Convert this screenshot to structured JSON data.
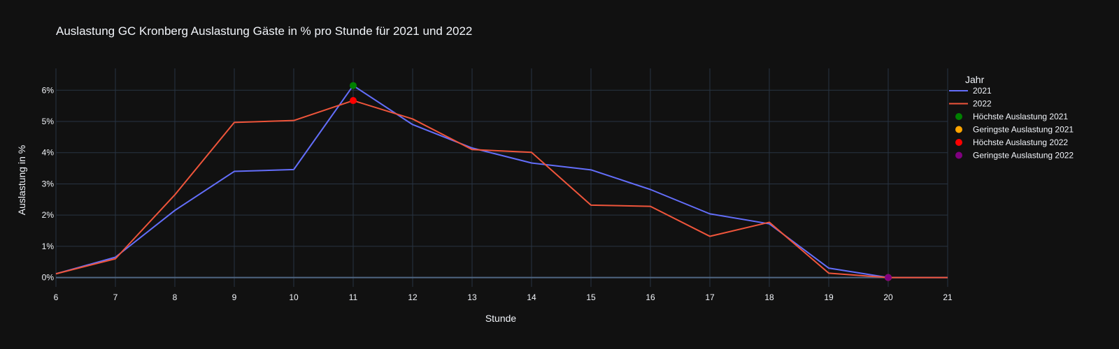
{
  "chart_data": {
    "type": "line",
    "title": "Auslastung GC Kronberg Auslastung Gäste in % pro Stunde für 2021 und 2022",
    "xlabel": "Stunde",
    "ylabel": "Auslastung in %",
    "xlim": [
      6,
      21
    ],
    "ylim": [
      -0.3,
      6.7
    ],
    "xticks": [
      6,
      7,
      8,
      9,
      10,
      11,
      12,
      13,
      14,
      15,
      16,
      17,
      18,
      19,
      20,
      21
    ],
    "yticks": [
      0,
      1,
      2,
      3,
      4,
      5,
      6
    ],
    "ytick_suffix": "%",
    "grid": true,
    "legend_title": "Jahr",
    "legend_position": "right",
    "series": [
      {
        "name": "2021",
        "color": "#636efa",
        "x": [
          6,
          7,
          8,
          9,
          10,
          11,
          12,
          13,
          14,
          15,
          16,
          17,
          18,
          19,
          20,
          21
        ],
        "values": [
          0.12,
          0.65,
          2.15,
          3.4,
          3.46,
          6.15,
          4.9,
          4.15,
          3.67,
          3.45,
          2.82,
          2.04,
          1.72,
          0.3,
          0.0,
          0.0
        ]
      },
      {
        "name": "2022",
        "color": "#ef553b",
        "x": [
          6,
          7,
          8,
          9,
          10,
          11,
          12,
          13,
          14,
          15,
          16,
          17,
          18,
          19,
          20,
          21
        ],
        "values": [
          0.12,
          0.6,
          2.65,
          4.97,
          5.03,
          5.67,
          5.08,
          4.1,
          4.01,
          2.32,
          2.28,
          1.32,
          1.77,
          0.14,
          0.0,
          0.0
        ]
      }
    ],
    "markers": [
      {
        "name": "Höchste Auslastung 2021",
        "color": "#008000",
        "x": 11,
        "y": 6.15
      },
      {
        "name": "Geringste Auslastung 2021",
        "color": "#ffa500",
        "x": 20,
        "y": 0.0
      },
      {
        "name": "Höchste Auslastung 2022",
        "color": "#ff0000",
        "x": 11,
        "y": 5.67
      },
      {
        "name": "Geringste Auslastung 2022",
        "color": "#800080",
        "x": 20,
        "y": 0.0
      }
    ]
  }
}
